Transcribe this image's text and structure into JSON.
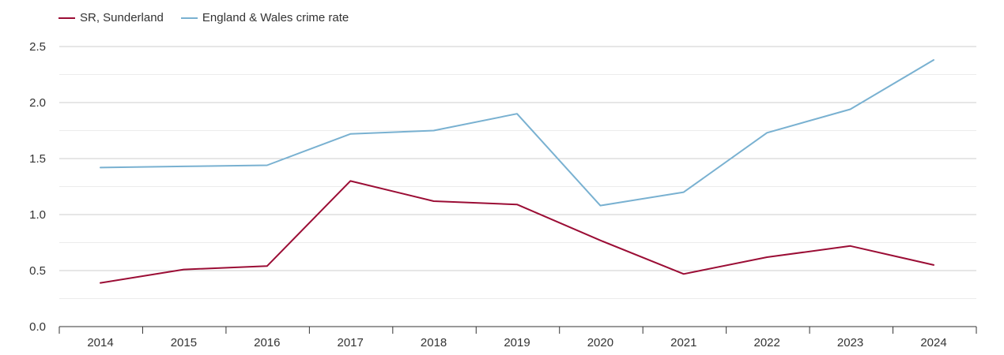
{
  "chart_data": {
    "type": "line",
    "title": "",
    "xlabel": "",
    "ylabel": "",
    "categories": [
      "2014",
      "2015",
      "2016",
      "2017",
      "2018",
      "2019",
      "2020",
      "2021",
      "2022",
      "2023",
      "2024"
    ],
    "series": [
      {
        "name": "SR, Sunderland",
        "color": "#9b0d35",
        "values": [
          0.39,
          0.51,
          0.54,
          1.3,
          1.12,
          1.09,
          0.77,
          0.47,
          0.62,
          0.72,
          0.55
        ]
      },
      {
        "name": "England & Wales crime rate",
        "color": "#79b1d1",
        "values": [
          1.42,
          1.43,
          1.44,
          1.72,
          1.75,
          1.9,
          1.08,
          1.2,
          1.73,
          1.94,
          2.38
        ]
      }
    ],
    "ylim": [
      0,
      2.5
    ],
    "yticks": [
      "0.0",
      "0.5",
      "1.0",
      "1.5",
      "2.0",
      "2.5"
    ],
    "grid": true,
    "legend_position": "top-left"
  }
}
